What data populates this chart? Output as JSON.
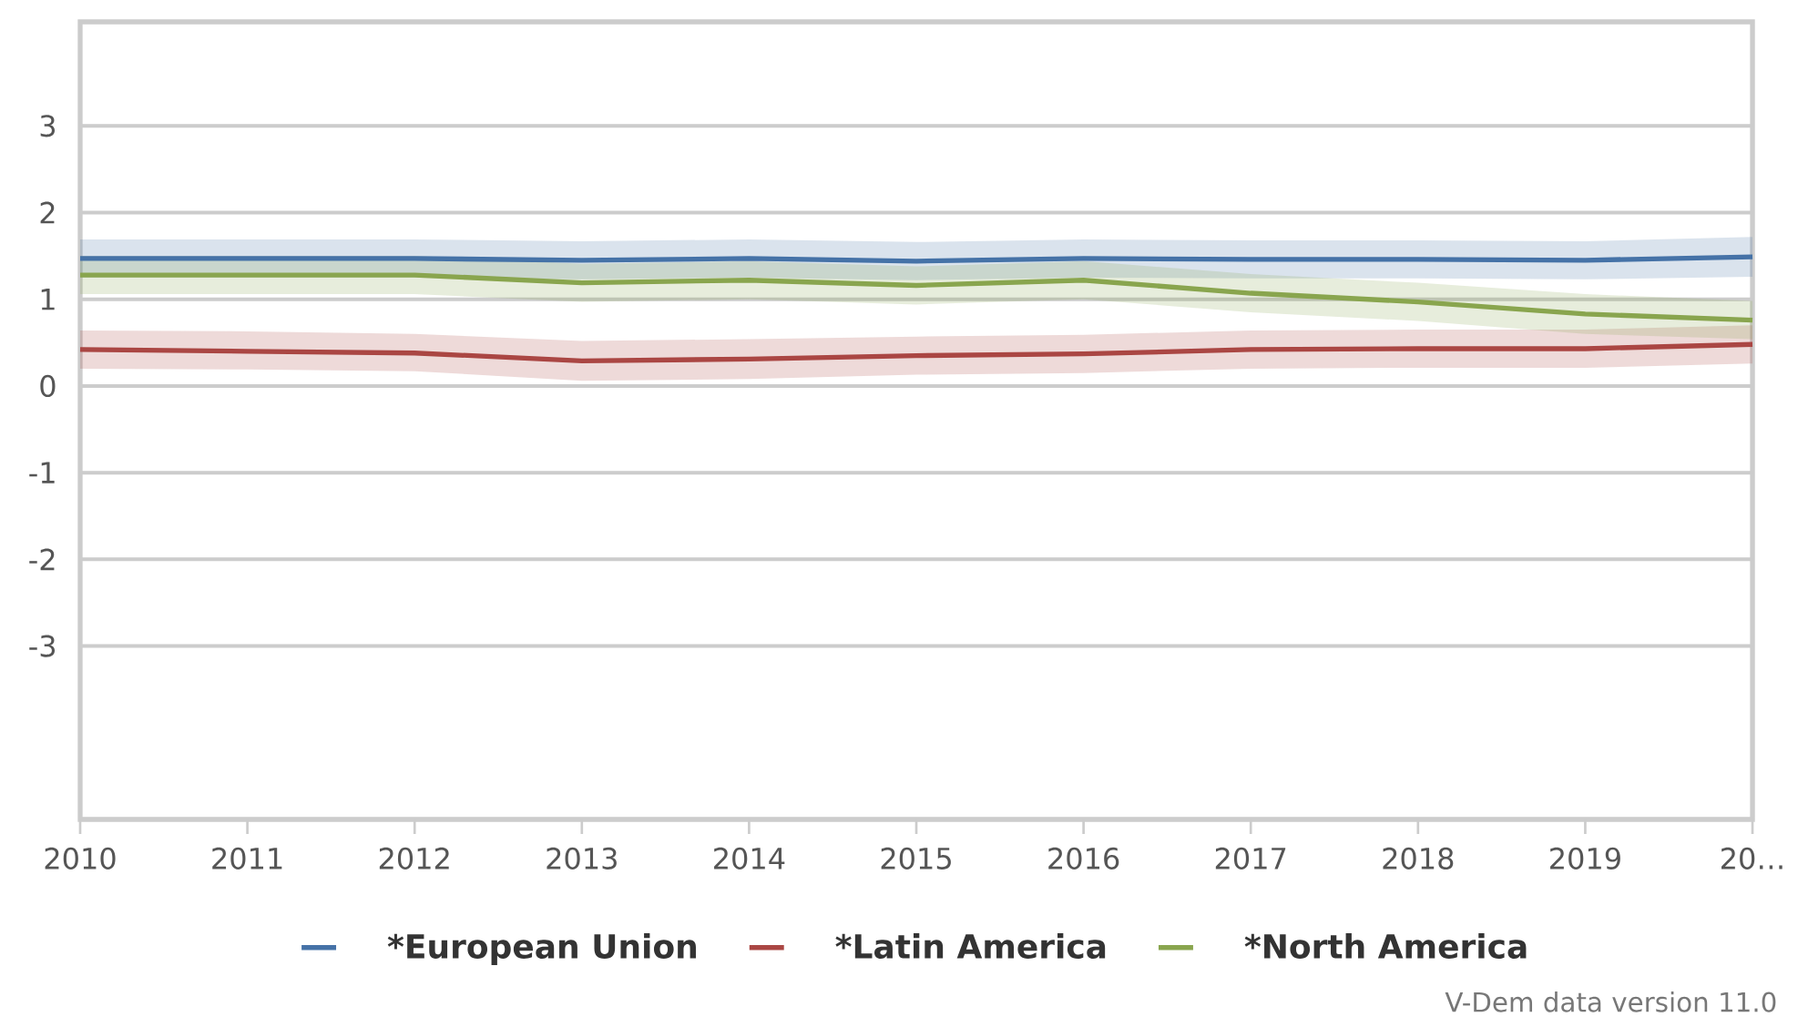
{
  "chart_data": {
    "type": "line",
    "x": [
      2010,
      2011,
      2012,
      2013,
      2014,
      2015,
      2016,
      2017,
      2018,
      2019,
      2020
    ],
    "xlim": [
      2010,
      2020
    ],
    "xticks": [
      2010,
      2011,
      2012,
      2013,
      2014,
      2015,
      2016,
      2017,
      2018,
      2019,
      {
        "value": 2020,
        "label": "20…"
      }
    ],
    "ylim": [
      -5,
      4.2
    ],
    "yticks": [
      -3,
      -2,
      -1,
      0,
      1,
      2,
      3
    ],
    "grid": "y",
    "legend": "bottom",
    "series": [
      {
        "name": "*European Union",
        "color": "#4572a7",
        "values": [
          1.47,
          1.47,
          1.47,
          1.45,
          1.47,
          1.44,
          1.47,
          1.46,
          1.46,
          1.45,
          1.49
        ],
        "lower": [
          1.25,
          1.25,
          1.25,
          1.23,
          1.25,
          1.22,
          1.25,
          1.24,
          1.24,
          1.23,
          1.26
        ],
        "upper": [
          1.69,
          1.69,
          1.69,
          1.67,
          1.69,
          1.66,
          1.69,
          1.68,
          1.68,
          1.67,
          1.72
        ]
      },
      {
        "name": "*Latin America",
        "color": "#aa4643",
        "values": [
          0.42,
          0.4,
          0.38,
          0.29,
          0.31,
          0.35,
          0.37,
          0.42,
          0.43,
          0.43,
          0.48
        ],
        "lower": [
          0.2,
          0.19,
          0.17,
          0.06,
          0.08,
          0.13,
          0.15,
          0.2,
          0.21,
          0.21,
          0.26
        ],
        "upper": [
          0.64,
          0.63,
          0.6,
          0.52,
          0.54,
          0.57,
          0.59,
          0.64,
          0.65,
          0.65,
          0.7
        ]
      },
      {
        "name": "*North America",
        "color": "#89a54e",
        "values": [
          1.28,
          1.28,
          1.28,
          1.19,
          1.22,
          1.16,
          1.22,
          1.07,
          0.97,
          0.83,
          0.76
        ],
        "lower": [
          1.06,
          1.06,
          1.06,
          0.97,
          1.0,
          0.94,
          1.0,
          0.85,
          0.75,
          0.6,
          0.54
        ],
        "upper": [
          1.5,
          1.5,
          1.5,
          1.41,
          1.44,
          1.38,
          1.44,
          1.29,
          1.19,
          1.06,
          0.98
        ]
      }
    ],
    "annotations": [
      "V-Dem data version 11.0"
    ]
  }
}
